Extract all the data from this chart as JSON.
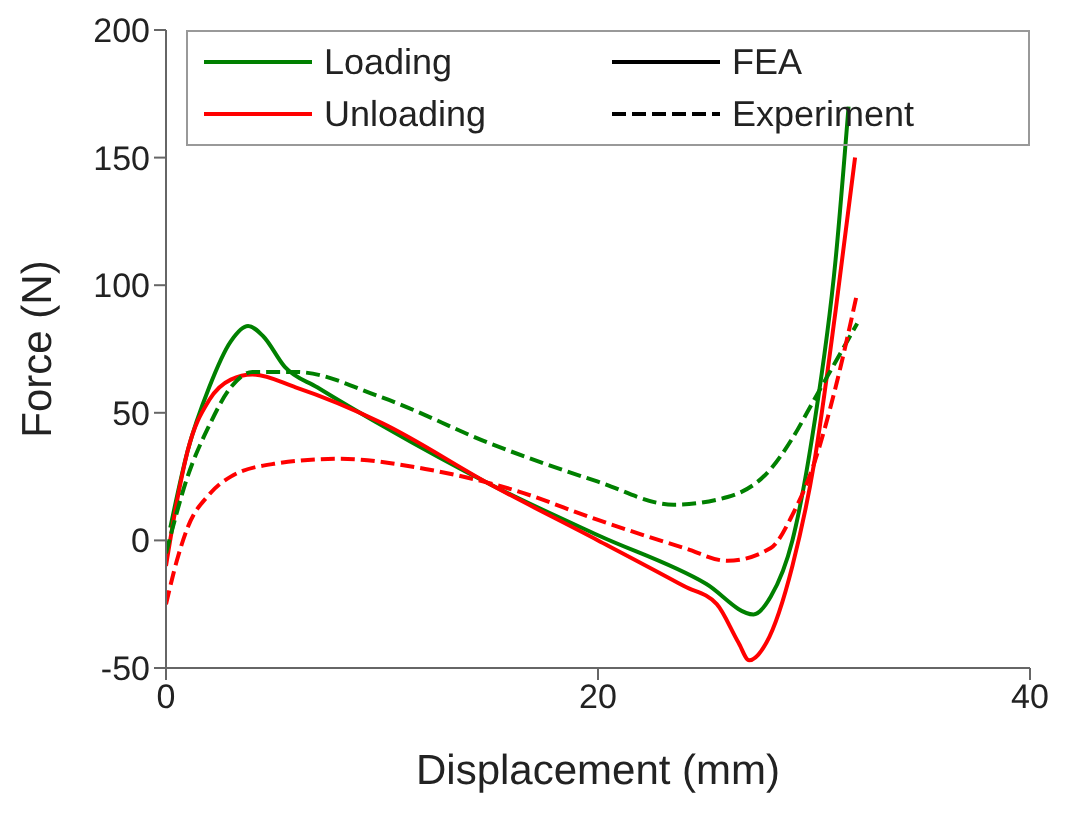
{
  "chart_data": {
    "type": "line",
    "xlabel": "Displacement (mm)",
    "ylabel": "Force (N)",
    "xlim": [
      0,
      40
    ],
    "xticks": [
      0,
      20,
      40
    ],
    "ylim": [
      -50,
      200
    ],
    "yticks": [
      -50,
      0,
      50,
      100,
      150,
      200
    ],
    "legend": "top",
    "marker": "none",
    "series": [
      {
        "name": "Loading",
        "color": "#008000",
        "line_style": "solid",
        "x": [
          0.2,
          1,
          2,
          3,
          3.8,
          4.5,
          5.5,
          7,
          10,
          15,
          20,
          25,
          27.2,
          28,
          29,
          30,
          31,
          31.6
        ],
        "values": [
          5,
          35,
          60,
          78,
          84,
          80,
          68,
          60,
          45,
          22,
          2,
          -17,
          -29,
          -22,
          0,
          45,
          110,
          170
        ]
      },
      {
        "name": "Unloading",
        "color": "#ff0000",
        "line_style": "solid",
        "x": [
          0,
          0.5,
          1,
          2,
          3,
          4,
          6,
          10,
          15,
          20,
          24,
          25.5,
          26.5,
          27,
          27.8,
          29,
          30,
          31,
          31.9
        ],
        "values": [
          -10,
          15,
          35,
          55,
          63,
          65,
          60,
          46,
          22,
          0,
          -18,
          -25,
          -40,
          -47,
          -40,
          -10,
          30,
          90,
          150
        ]
      },
      {
        "color": "#008000",
        "line_style": "dashed",
        "x": [
          0,
          1,
          2,
          3,
          4,
          6,
          10,
          15,
          20,
          23.5,
          26,
          28,
          29,
          30,
          31,
          32
        ],
        "values": [
          -5,
          25,
          45,
          60,
          66,
          66,
          56,
          38,
          23,
          14,
          17,
          28,
          40,
          55,
          70,
          85
        ]
      },
      {
        "color": "#ff0000",
        "line_style": "dashed",
        "x": [
          0,
          0.5,
          1,
          2,
          3,
          5,
          8,
          12,
          16,
          20,
          24,
          26,
          28,
          29,
          30,
          31,
          32
        ],
        "values": [
          -25,
          -8,
          5,
          18,
          25,
          30,
          32,
          28,
          20,
          8,
          -3,
          -8,
          -3,
          10,
          30,
          60,
          97
        ]
      },
      {
        "name": "FEA",
        "color": "#000000",
        "line_style": "solid"
      },
      {
        "name": "Experiment",
        "color": "#000000",
        "line_style": "dashed"
      }
    ]
  }
}
